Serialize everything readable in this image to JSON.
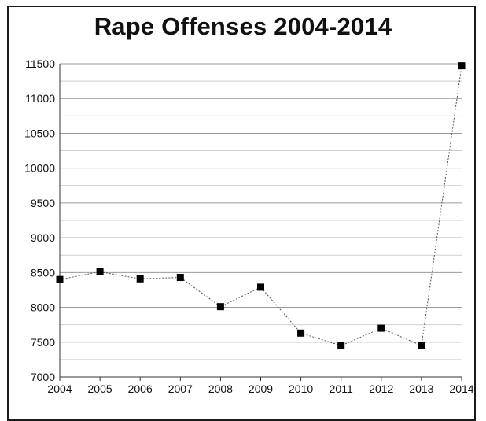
{
  "chart_data": {
    "type": "line",
    "title": "Rape Offenses 2004-2014",
    "xlabel": "",
    "ylabel": "",
    "x": [
      "2004",
      "2005",
      "2006",
      "2007",
      "2008",
      "2009",
      "2010",
      "2011",
      "2012",
      "2013",
      "2014"
    ],
    "series": [
      {
        "values": [
          8400,
          8510,
          8410,
          8430,
          8010,
          8290,
          7630,
          7450,
          7700,
          7450,
          11470
        ]
      }
    ],
    "ylim": [
      7000,
      11500
    ],
    "yticks": [
      "7000",
      "7500",
      "8000",
      "8500",
      "9000",
      "9500",
      "10000",
      "10500",
      "11000",
      "11500"
    ],
    "grid": "horizontal",
    "legend": "none",
    "colors": {
      "line": "#555555",
      "marker": "#000000",
      "gridline": "#9a9a9a",
      "axis": "#333333"
    }
  }
}
